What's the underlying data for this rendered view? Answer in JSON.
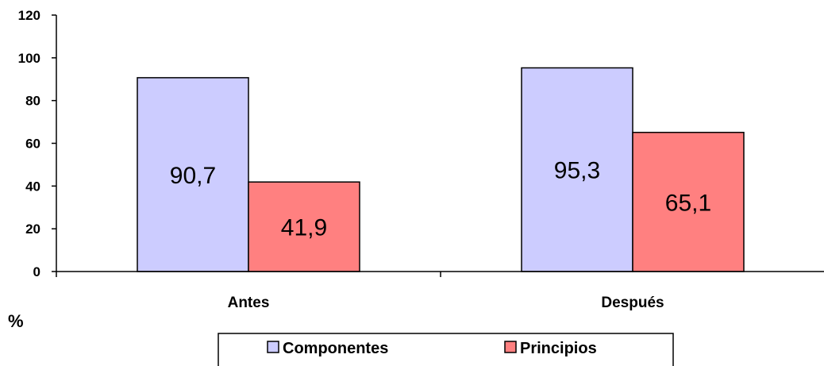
{
  "chart_data": {
    "type": "bar",
    "categories": [
      "Antes",
      "Después"
    ],
    "series": [
      {
        "name": "Componentes",
        "values": [
          90.7,
          95.3
        ],
        "labels": [
          "90,7",
          "95,3"
        ],
        "color": "#ccccff"
      },
      {
        "name": "Principios",
        "values": [
          41.9,
          65.1
        ],
        "labels": [
          "41,9",
          "65,1"
        ],
        "color": "#ff8080"
      }
    ],
    "ylim": [
      0,
      120
    ],
    "yticks": [
      0,
      20,
      40,
      60,
      80,
      100,
      120
    ],
    "ylabel": "%",
    "xlabel": "",
    "title": "",
    "grid": false,
    "legend": "bottom"
  }
}
